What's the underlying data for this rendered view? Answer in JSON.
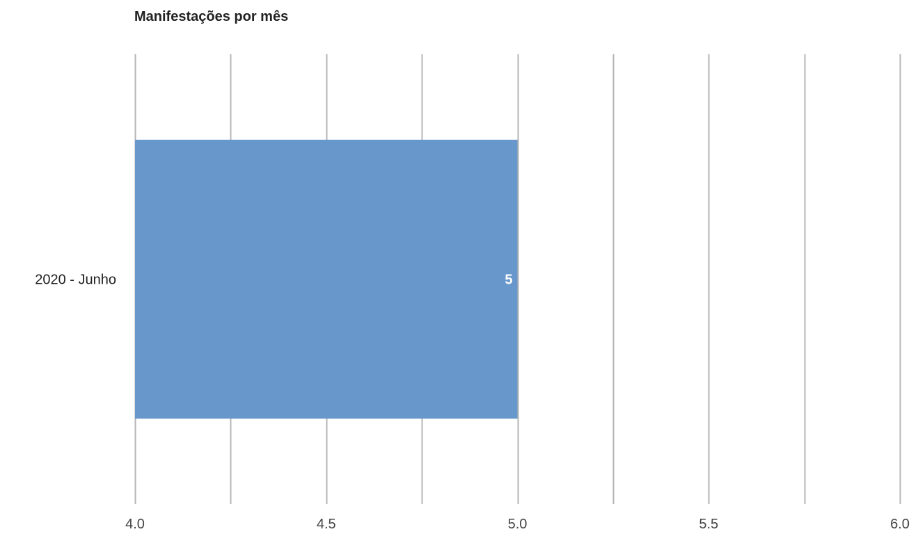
{
  "chart_data": {
    "type": "bar",
    "orientation": "horizontal",
    "title": "Manifestações por mês",
    "categories": [
      "2020 - Junho"
    ],
    "series": [
      {
        "values": [
          5
        ]
      }
    ],
    "data_labels": [
      "5"
    ],
    "xlim": [
      4.0,
      6.0
    ],
    "x_ticks": [
      4.0,
      4.5,
      5.0,
      5.5,
      6.0
    ],
    "x_tick_labels": [
      "4.0",
      "4.5",
      "5.0",
      "5.5",
      "6.0"
    ],
    "minor_gridlines": [
      4.25,
      4.75,
      5.25,
      5.75
    ],
    "grid": true,
    "legend": "none",
    "colors": {
      "bar": "#6897cc",
      "gridline": "#b5b5b5",
      "data_label": "#ffffff",
      "text": "#222222"
    }
  }
}
